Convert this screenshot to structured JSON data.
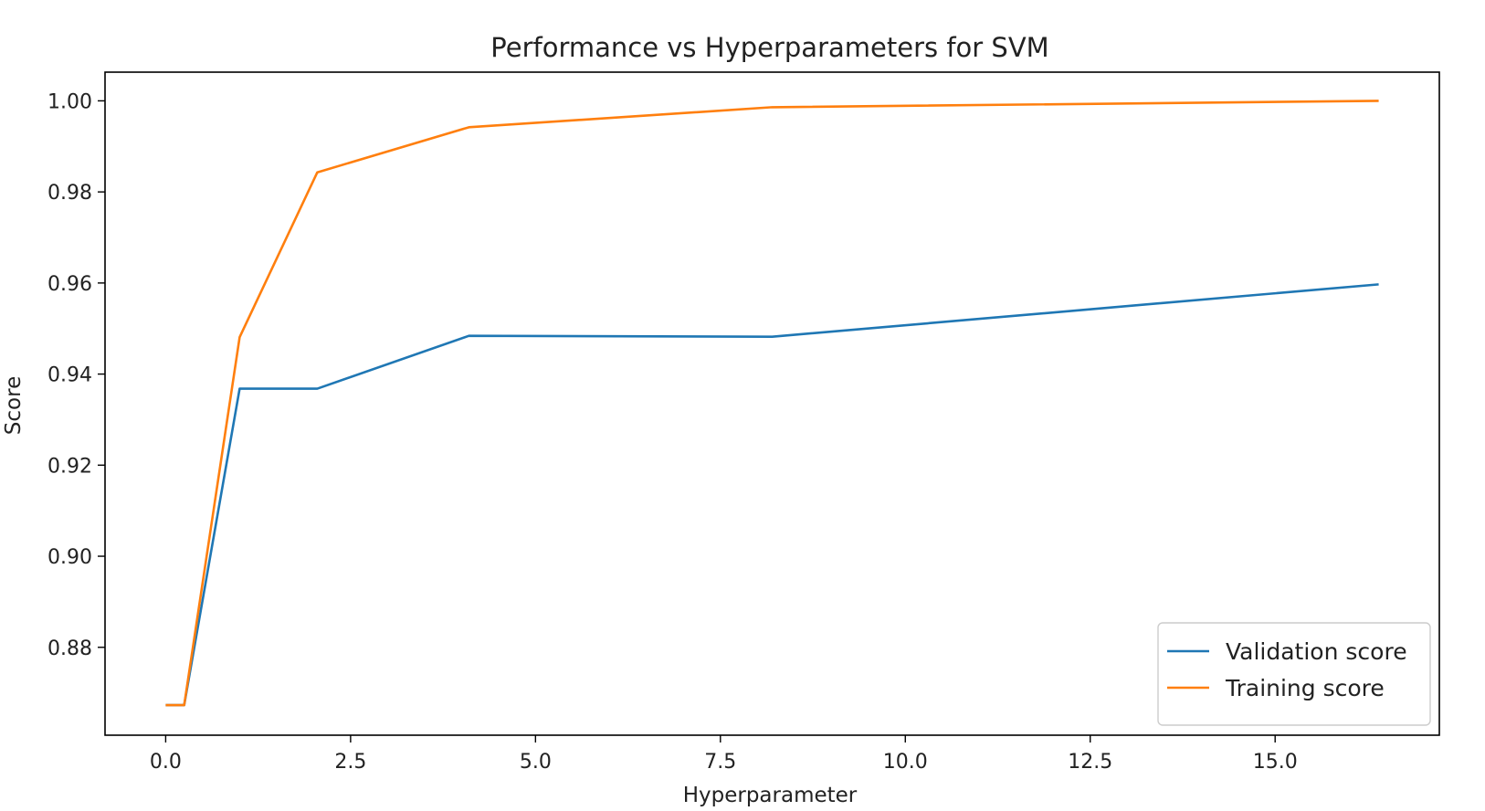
{
  "chart_data": {
    "type": "line",
    "title": "Performance vs Hyperparameters for SVM",
    "xlabel": "Hyperparameter",
    "ylabel": "Score",
    "xlim": [
      -0.82,
      17.22
    ],
    "ylim": [
      0.8607,
      1.0063
    ],
    "xticks": [
      0.0,
      2.5,
      5.0,
      7.5,
      10.0,
      12.5,
      15.0
    ],
    "xtick_labels": [
      "0.0",
      "2.5",
      "5.0",
      "7.5",
      "10.0",
      "12.5",
      "15.0"
    ],
    "yticks": [
      0.88,
      0.9,
      0.92,
      0.94,
      0.96,
      0.98,
      1.0
    ],
    "ytick_labels": [
      "0.88",
      "0.90",
      "0.92",
      "0.94",
      "0.96",
      "0.98",
      "1.00"
    ],
    "grid": false,
    "legend_position": "lower-right",
    "x": [
      0.0,
      0.25,
      1.0,
      2.05,
      4.1,
      8.2,
      16.4
    ],
    "series": [
      {
        "name": "Validation score",
        "color": "#1f77b4",
        "values": [
          0.8673,
          0.8673,
          0.9368,
          0.9368,
          0.9484,
          0.9482,
          0.9597
        ]
      },
      {
        "name": "Training score",
        "color": "#ff7f0e",
        "values": [
          0.8673,
          0.8673,
          0.9481,
          0.9843,
          0.9942,
          0.9986,
          1.0
        ]
      }
    ]
  }
}
